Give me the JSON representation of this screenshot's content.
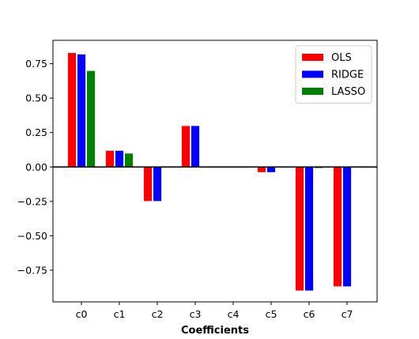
{
  "chart_data": {
    "type": "bar",
    "categories": [
      "c0",
      "c1",
      "c2",
      "c3",
      "c4",
      "c5",
      "c6",
      "c7"
    ],
    "series": [
      {
        "name": "OLS",
        "color": "#ff0000",
        "values": [
          0.83,
          0.12,
          -0.25,
          0.3,
          0.0,
          -0.04,
          -0.9,
          -0.87
        ]
      },
      {
        "name": "RIDGE",
        "color": "#0000ff",
        "values": [
          0.82,
          0.12,
          -0.25,
          0.3,
          0.0,
          -0.04,
          -0.9,
          -0.87
        ]
      },
      {
        "name": "LASSO",
        "color": "#008000",
        "values": [
          0.7,
          0.1,
          0.0,
          0.0,
          0.0,
          0.0,
          -0.01,
          0.0
        ]
      }
    ],
    "title": "",
    "xlabel": "Coefficients",
    "ylabel": "",
    "ylim": [
      -0.98,
      0.92
    ],
    "yticks": [
      -0.75,
      -0.5,
      -0.25,
      0.0,
      0.25,
      0.5,
      0.75
    ],
    "ytick_labels": [
      "−0.75",
      "−0.50",
      "−0.25",
      "0.00",
      "0.25",
      "0.50",
      "0.75"
    ],
    "zero_line": true,
    "grid": false,
    "legend_position": "top-right"
  }
}
